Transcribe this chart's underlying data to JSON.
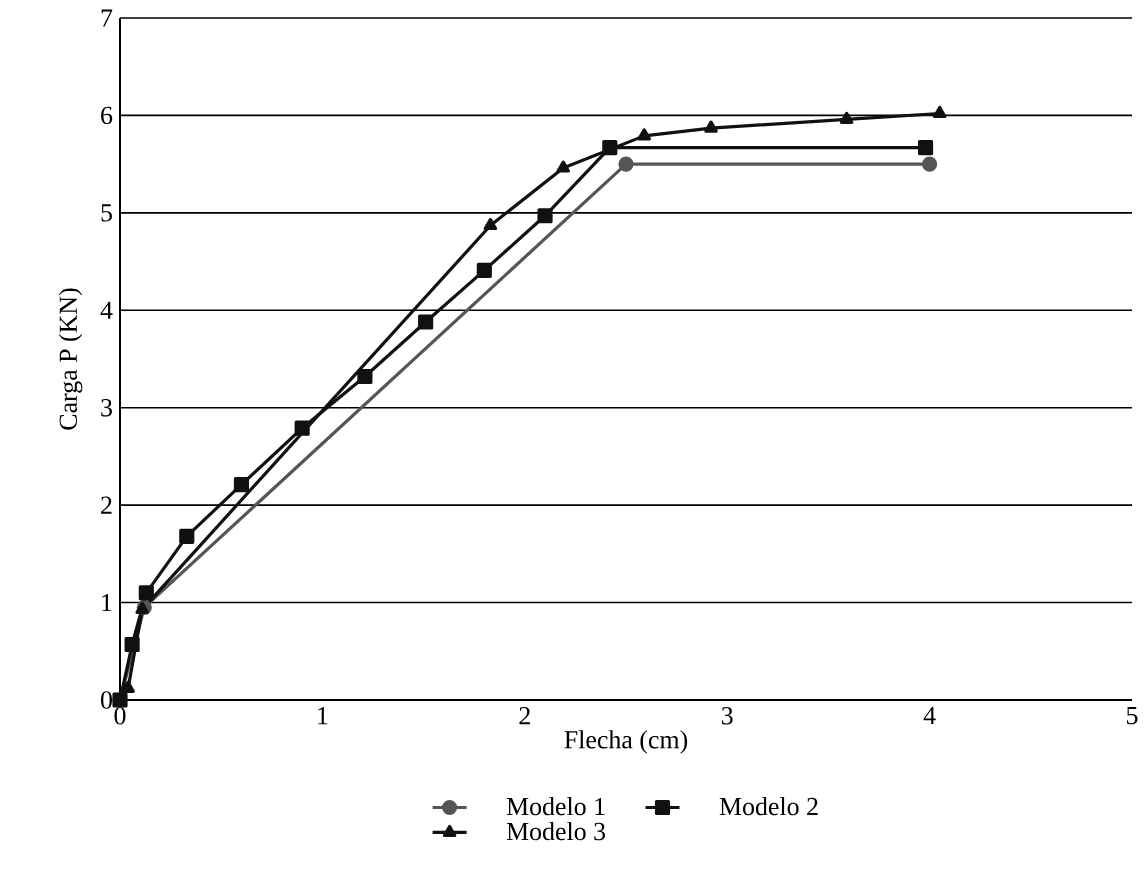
{
  "chart_data": {
    "type": "line",
    "xlabel": "Flecha (cm)",
    "ylabel": "Carga P (KN)",
    "xlim": [
      0,
      5
    ],
    "ylim": [
      0,
      7
    ],
    "xticks": [
      0,
      1,
      2,
      3,
      4,
      5
    ],
    "yticks": [
      0,
      1,
      2,
      3,
      4,
      5,
      6,
      7
    ],
    "grid": "y",
    "legend": "bottom",
    "line_style": "solid",
    "series": [
      {
        "name": "Modelo 1",
        "color": "#555555",
        "marker": "circle",
        "x": [
          0,
          0.12,
          2.5,
          4.0
        ],
        "values": [
          0,
          0.95,
          5.5,
          5.5
        ]
      },
      {
        "name": "Modelo 2",
        "color": "#111111",
        "marker": "square",
        "x": [
          0,
          0.06,
          0.13,
          0.33,
          0.6,
          0.9,
          1.21,
          1.51,
          1.8,
          2.1,
          2.42,
          3.98
        ],
        "values": [
          0,
          0.57,
          1.1,
          1.68,
          2.21,
          2.79,
          3.32,
          3.88,
          4.41,
          4.97,
          5.67,
          5.67
        ]
      },
      {
        "name": "Modelo 3",
        "color": "#111111",
        "marker": "triangle",
        "x": [
          0,
          0.04,
          0.11,
          1.83,
          2.19,
          2.59,
          2.92,
          3.59,
          4.05
        ],
        "values": [
          0,
          0.12,
          0.93,
          4.87,
          5.46,
          5.79,
          5.87,
          5.96,
          6.02
        ]
      }
    ]
  }
}
